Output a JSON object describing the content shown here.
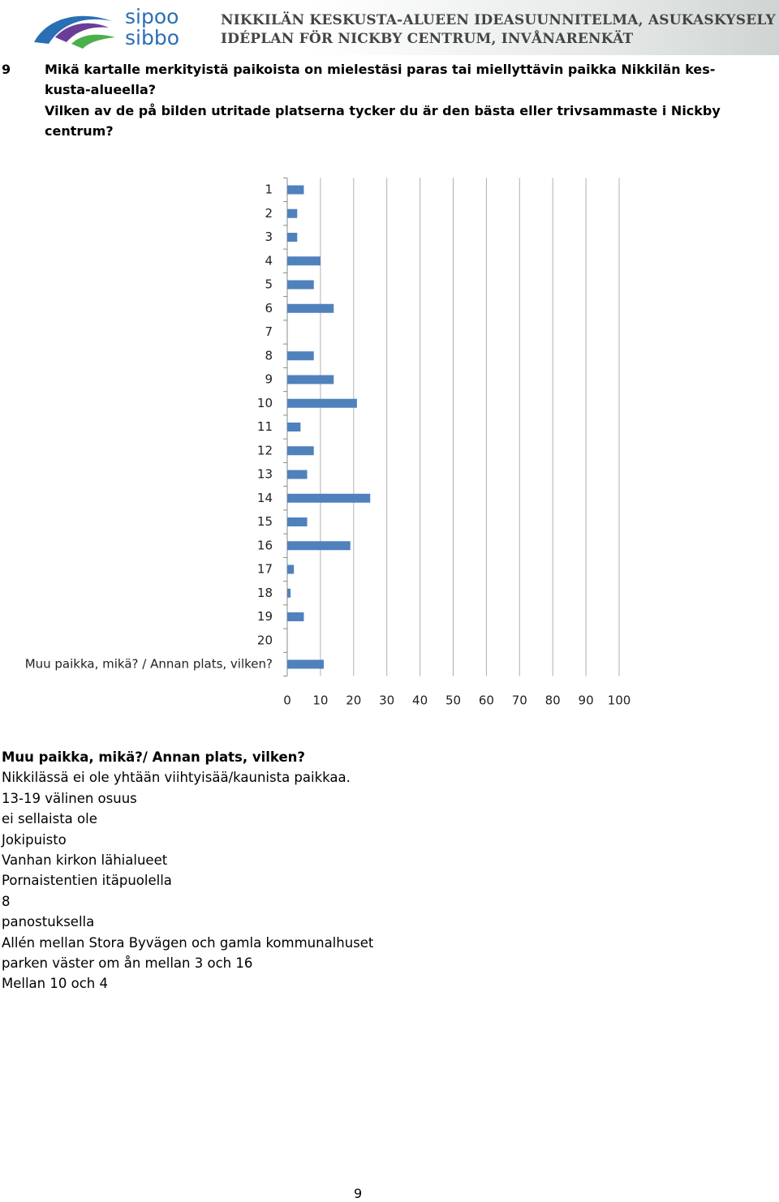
{
  "header": {
    "logo_top": "sipoo",
    "logo_bottom": "sibbo",
    "title_lines": [
      "NIKKILÄN KESKUSTA-ALUEEN IDEASUUNNITELMA, ASUKASKYSELY",
      "IDÉPLAN FÖR NICKBY CENTRUM, INVÅNARENKÄT"
    ]
  },
  "question": {
    "number": "9",
    "lines": [
      "Mikä kartalle merkityistä paikoista on mielestäsi paras tai miellyttävin paikka Nikkilän kes-",
      "kusta-alueella?",
      "Vilken av de på bilden utritade platserna tycker du är den bästa eller trivsammaste i Nickby",
      "centrum?"
    ]
  },
  "chart_data": {
    "type": "bar",
    "orientation": "horizontal",
    "color": "#4f81bd",
    "grid": true,
    "categories": [
      "1",
      "2",
      "3",
      "4",
      "5",
      "6",
      "7",
      "8",
      "9",
      "10",
      "11",
      "12",
      "13",
      "14",
      "15",
      "16",
      "17",
      "18",
      "19",
      "20",
      "Muu paikka, mikä? / Annan plats, vilken?"
    ],
    "values": [
      5,
      3,
      3,
      10,
      8,
      14,
      0,
      8,
      14,
      21,
      4,
      8,
      6,
      25,
      6,
      19,
      2,
      1,
      5,
      0,
      11
    ],
    "xlim": [
      0,
      100
    ],
    "xticks": [
      0,
      10,
      20,
      30,
      40,
      50,
      60,
      70,
      80,
      90,
      100
    ]
  },
  "other_answers": {
    "heading": "Muu paikka, mikä?/ Annan plats, vilken?",
    "items": [
      "Nikkilässä ei ole yhtään viihtyisää/kaunista paikkaa.",
      "13-19 välinen osuus",
      "ei sellaista ole",
      "Jokipuisto",
      "Vanhan kirkon lähialueet",
      "Pornaistentien itäpuolella",
      "8",
      "panostuksella",
      "Allén mellan Stora Byvägen och gamla kommunalhuset",
      "parken väster om ån mellan 3 och 16",
      "Mellan 10 och 4"
    ]
  },
  "page_number": "9"
}
